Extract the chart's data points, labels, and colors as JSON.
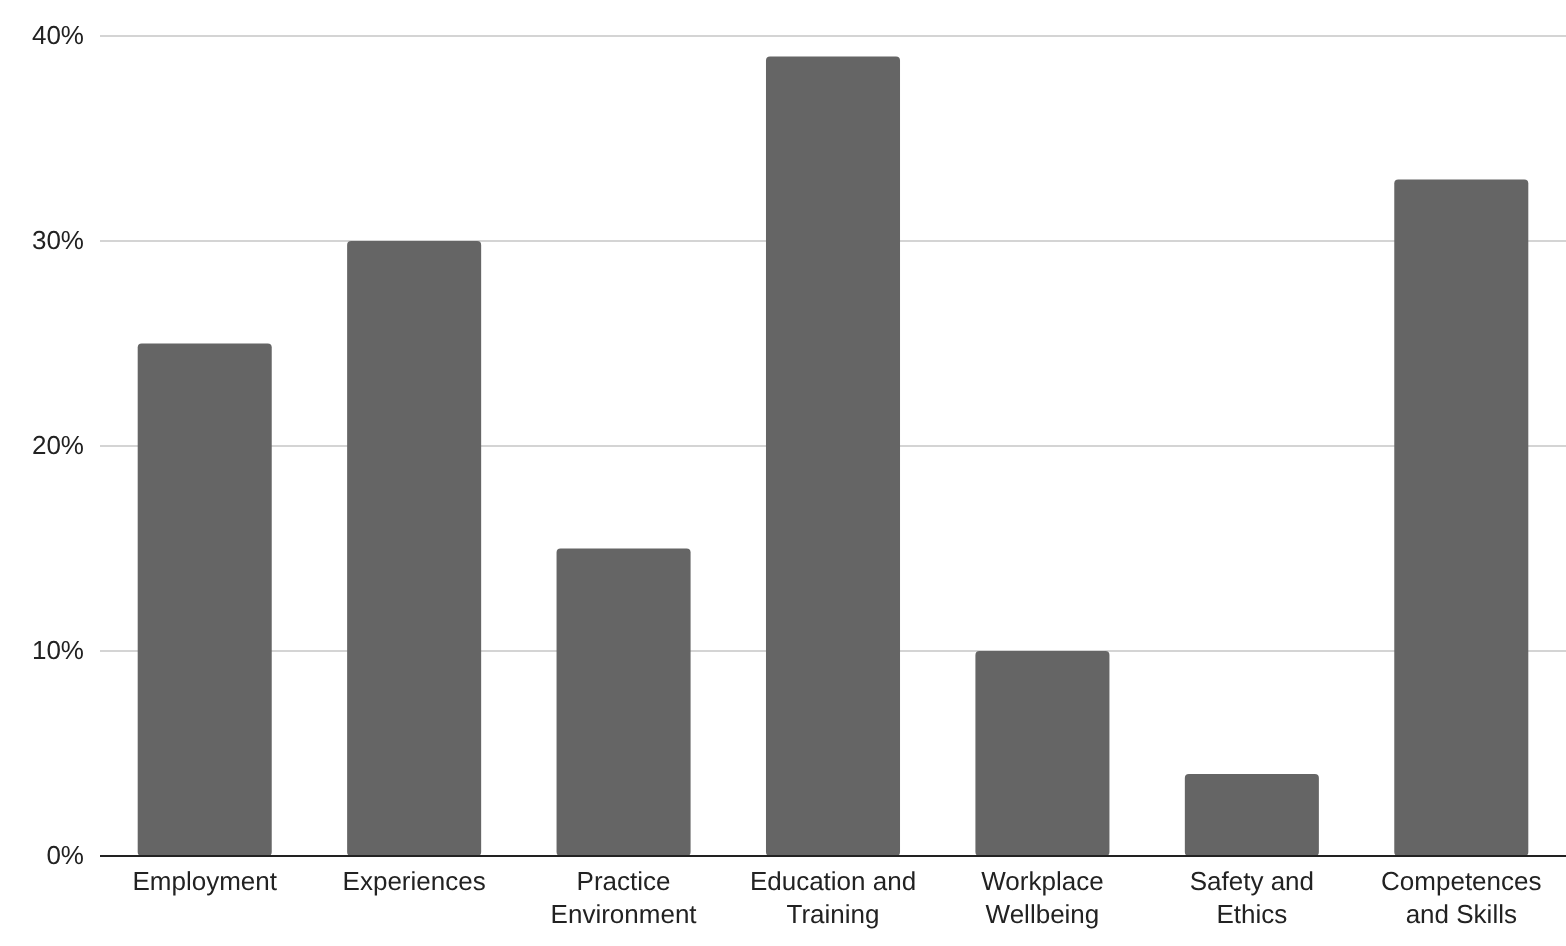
{
  "chart_data": {
    "type": "bar",
    "categories": [
      "Employment",
      "Experiences",
      "Practice Environment",
      "Education and Training",
      "Workplace Wellbeing",
      "Safety and Ethics",
      "Competences and Skills"
    ],
    "values": [
      25,
      30,
      15,
      39,
      10,
      4,
      33
    ],
    "color": "#656565",
    "ylim": [
      0,
      40
    ],
    "yticks": [
      {
        "value": 0,
        "label": "0%"
      },
      {
        "value": 10,
        "label": "10%"
      },
      {
        "value": 20,
        "label": "20%"
      },
      {
        "value": 30,
        "label": "30%"
      },
      {
        "value": 40,
        "label": "40%"
      }
    ],
    "grid": "y"
  }
}
